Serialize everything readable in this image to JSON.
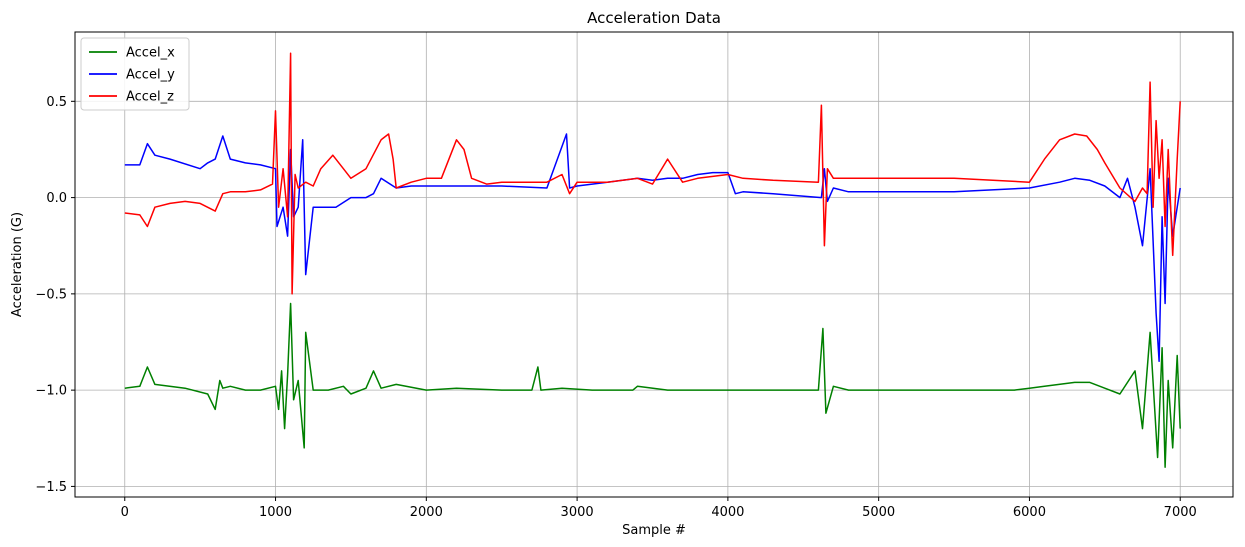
{
  "chart_data": {
    "type": "line",
    "title": "Acceleration Data",
    "xlabel": "Sample #",
    "ylabel": "Acceleration (G)",
    "xlim": [
      -330,
      7350
    ],
    "ylim": [
      -1.555,
      0.86
    ],
    "xticks": [
      0,
      1000,
      2000,
      3000,
      4000,
      5000,
      6000,
      7000
    ],
    "yticks": [
      -1.5,
      -1.0,
      -0.5,
      0.0,
      0.5
    ],
    "xtick_labels": [
      "0",
      "1000",
      "2000",
      "3000",
      "4000",
      "5000",
      "6000",
      "7000"
    ],
    "ytick_labels": [
      "−1.5",
      "−1.0",
      "−0.5",
      "0.0",
      "0.5"
    ],
    "grid": true,
    "legend_position": "top-left",
    "series": [
      {
        "name": "Accel_x",
        "color": "#008000",
        "x": [
          0,
          100,
          150,
          200,
          400,
          550,
          600,
          630,
          650,
          700,
          800,
          900,
          1000,
          1020,
          1040,
          1060,
          1080,
          1100,
          1120,
          1150,
          1190,
          1200,
          1250,
          1350,
          1450,
          1500,
          1600,
          1650,
          1700,
          1800,
          2000,
          2200,
          2500,
          2700,
          2740,
          2760,
          2900,
          3100,
          3370,
          3400,
          3600,
          3800,
          4000,
          4200,
          4400,
          4600,
          4630,
          4650,
          4700,
          4800,
          5000,
          5500,
          5900,
          6000,
          6100,
          6300,
          6400,
          6500,
          6600,
          6700,
          6750,
          6800,
          6850,
          6880,
          6900,
          6920,
          6950,
          6980,
          7000
        ],
        "y": [
          -0.99,
          -0.98,
          -0.88,
          -0.97,
          -0.99,
          -1.02,
          -1.1,
          -0.95,
          -0.99,
          -0.98,
          -1.0,
          -1.0,
          -0.98,
          -1.1,
          -0.9,
          -1.2,
          -0.92,
          -0.55,
          -1.05,
          -0.95,
          -1.3,
          -0.7,
          -1.0,
          -1.0,
          -0.98,
          -1.02,
          -0.99,
          -0.9,
          -0.99,
          -0.97,
          -1.0,
          -0.99,
          -1.0,
          -1.0,
          -0.88,
          -1.0,
          -0.99,
          -1.0,
          -1.0,
          -0.98,
          -1.0,
          -1.0,
          -1.0,
          -1.0,
          -1.0,
          -1.0,
          -0.68,
          -1.12,
          -0.98,
          -1.0,
          -1.0,
          -1.0,
          -1.0,
          -0.99,
          -0.98,
          -0.96,
          -0.96,
          -0.99,
          -1.02,
          -0.9,
          -1.2,
          -0.7,
          -1.35,
          -0.78,
          -1.4,
          -0.95,
          -1.3,
          -0.82,
          -1.2
        ]
      },
      {
        "name": "Accel_y",
        "color": "#0000ff",
        "x": [
          0,
          100,
          150,
          200,
          300,
          500,
          550,
          600,
          650,
          700,
          800,
          900,
          1000,
          1010,
          1050,
          1080,
          1100,
          1120,
          1150,
          1180,
          1200,
          1250,
          1400,
          1500,
          1600,
          1650,
          1700,
          1800,
          1900,
          2000,
          2200,
          2300,
          2500,
          2800,
          2930,
          2950,
          3000,
          3200,
          3400,
          3500,
          3600,
          3700,
          3800,
          3900,
          4000,
          4050,
          4100,
          4300,
          4620,
          4640,
          4660,
          4700,
          4800,
          5000,
          5500,
          6000,
          6200,
          6300,
          6400,
          6500,
          6600,
          6650,
          6700,
          6750,
          6800,
          6840,
          6860,
          6880,
          6900,
          6920,
          6950,
          7000
        ],
        "y": [
          0.17,
          0.17,
          0.28,
          0.22,
          0.2,
          0.15,
          0.18,
          0.2,
          0.32,
          0.2,
          0.18,
          0.17,
          0.15,
          -0.15,
          -0.05,
          -0.2,
          0.25,
          -0.1,
          -0.05,
          0.3,
          -0.4,
          -0.05,
          -0.05,
          0.0,
          0.0,
          0.02,
          0.1,
          0.05,
          0.06,
          0.06,
          0.06,
          0.06,
          0.06,
          0.05,
          0.33,
          0.05,
          0.06,
          0.08,
          0.1,
          0.09,
          0.1,
          0.1,
          0.12,
          0.13,
          0.13,
          0.02,
          0.03,
          0.02,
          0.0,
          0.15,
          -0.02,
          0.05,
          0.03,
          0.03,
          0.03,
          0.05,
          0.08,
          0.1,
          0.09,
          0.06,
          0.0,
          0.1,
          -0.05,
          -0.25,
          0.15,
          -0.6,
          -0.85,
          -0.1,
          -0.55,
          0.1,
          -0.2,
          0.05
        ]
      },
      {
        "name": "Accel_z",
        "color": "#ff0000",
        "x": [
          0,
          100,
          150,
          200,
          300,
          400,
          500,
          600,
          650,
          700,
          800,
          900,
          980,
          1000,
          1020,
          1050,
          1080,
          1100,
          1110,
          1130,
          1150,
          1200,
          1250,
          1300,
          1380,
          1450,
          1500,
          1600,
          1700,
          1750,
          1780,
          1800,
          1900,
          2000,
          2100,
          2200,
          2250,
          2300,
          2400,
          2500,
          2800,
          2900,
          2950,
          3000,
          3200,
          3400,
          3500,
          3600,
          3700,
          3800,
          4000,
          4100,
          4300,
          4600,
          4620,
          4640,
          4660,
          4700,
          4800,
          5000,
          5500,
          6000,
          6100,
          6200,
          6300,
          6380,
          6450,
          6500,
          6600,
          6700,
          6750,
          6780,
          6800,
          6820,
          6840,
          6860,
          6880,
          6900,
          6920,
          6950,
          6980,
          7000
        ],
        "y": [
          -0.08,
          -0.09,
          -0.15,
          -0.05,
          -0.03,
          -0.02,
          -0.03,
          -0.07,
          0.02,
          0.03,
          0.03,
          0.04,
          0.07,
          0.45,
          -0.05,
          0.15,
          -0.1,
          0.75,
          -0.5,
          0.12,
          0.05,
          0.08,
          0.06,
          0.15,
          0.22,
          0.15,
          0.1,
          0.15,
          0.3,
          0.33,
          0.2,
          0.05,
          0.08,
          0.1,
          0.1,
          0.3,
          0.25,
          0.1,
          0.07,
          0.08,
          0.08,
          0.12,
          0.02,
          0.08,
          0.08,
          0.1,
          0.07,
          0.2,
          0.08,
          0.1,
          0.12,
          0.1,
          0.09,
          0.08,
          0.48,
          -0.25,
          0.15,
          0.1,
          0.1,
          0.1,
          0.1,
          0.08,
          0.2,
          0.3,
          0.33,
          0.32,
          0.25,
          0.18,
          0.05,
          -0.02,
          0.05,
          0.02,
          0.6,
          -0.05,
          0.4,
          0.1,
          0.3,
          -0.15,
          0.25,
          -0.3,
          0.2,
          0.5
        ]
      }
    ]
  }
}
